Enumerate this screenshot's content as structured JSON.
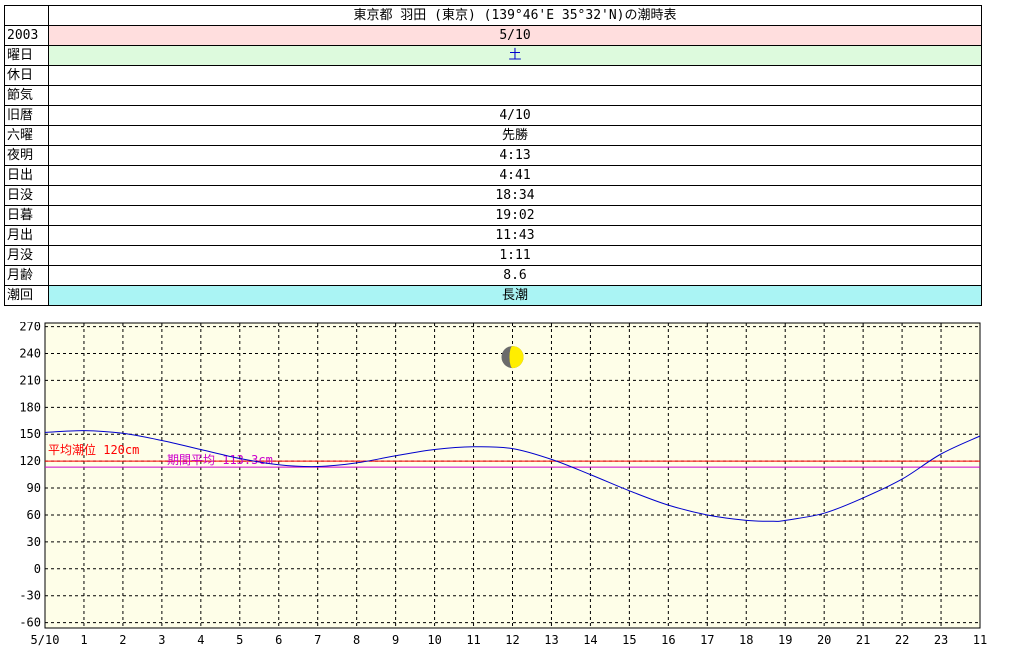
{
  "table": {
    "title": "東京都 羽田 (東京) (139°46'E 35°32'N)の潮時表",
    "rows": [
      {
        "label": "2003",
        "value": "5/10",
        "bg": "#ffdede"
      },
      {
        "label": "曜日",
        "value": "土",
        "bg": "#ddfadd",
        "color": "#0000cc"
      },
      {
        "label": "休日",
        "value": ""
      },
      {
        "label": "節気",
        "value": ""
      },
      {
        "label": "旧暦",
        "value": "4/10"
      },
      {
        "label": "六曜",
        "value": "先勝"
      },
      {
        "label": "夜明",
        "value": "4:13"
      },
      {
        "label": "日出",
        "value": "4:41"
      },
      {
        "label": "日没",
        "value": "18:34"
      },
      {
        "label": "日暮",
        "value": "19:02"
      },
      {
        "label": "月出",
        "value": "11:43"
      },
      {
        "label": "月没",
        "value": "1:11"
      },
      {
        "label": "月齢",
        "value": "8.6"
      },
      {
        "label": "潮回",
        "value": "長潮",
        "bg": "#aaf4f4"
      }
    ]
  },
  "chart_data": {
    "type": "line",
    "title": "",
    "xlabel": "",
    "ylabel": "",
    "x_ticks": [
      "5/10",
      "1",
      "2",
      "3",
      "4",
      "5",
      "6",
      "7",
      "8",
      "9",
      "10",
      "11",
      "12",
      "13",
      "14",
      "15",
      "16",
      "17",
      "18",
      "19",
      "20",
      "21",
      "22",
      "23",
      "11"
    ],
    "y_ticks": [
      -60,
      -30,
      0,
      30,
      60,
      90,
      120,
      150,
      180,
      210,
      240,
      270
    ],
    "xlim": [
      0,
      24
    ],
    "ylim": [
      -66,
      274
    ],
    "grid": true,
    "series": [
      {
        "color": "#0000cc",
        "x": [
          0,
          1,
          2,
          3,
          4,
          5,
          6,
          7,
          8,
          9,
          10,
          11,
          12,
          13,
          14,
          15,
          16,
          17,
          18,
          18.7,
          19,
          20,
          21,
          22,
          23,
          24
        ],
        "values": [
          152,
          154,
          151,
          143,
          133,
          123,
          116,
          114,
          118,
          126,
          133,
          136,
          134,
          122,
          105,
          87,
          71,
          60,
          54,
          53,
          54,
          62,
          79,
          100,
          128,
          148
        ]
      }
    ],
    "reference_lines": [
      {
        "label": "平均潮位 120cm",
        "value": 120,
        "color": "#ff0000"
      },
      {
        "label": "期間平均 113.3cm",
        "value": 113.3,
        "color": "#cc00cc"
      }
    ],
    "moon": {
      "x": 12,
      "y": 236,
      "age": 8.6
    },
    "colors": {
      "plot_bg": "#fefee8",
      "grid": "#000000"
    }
  }
}
